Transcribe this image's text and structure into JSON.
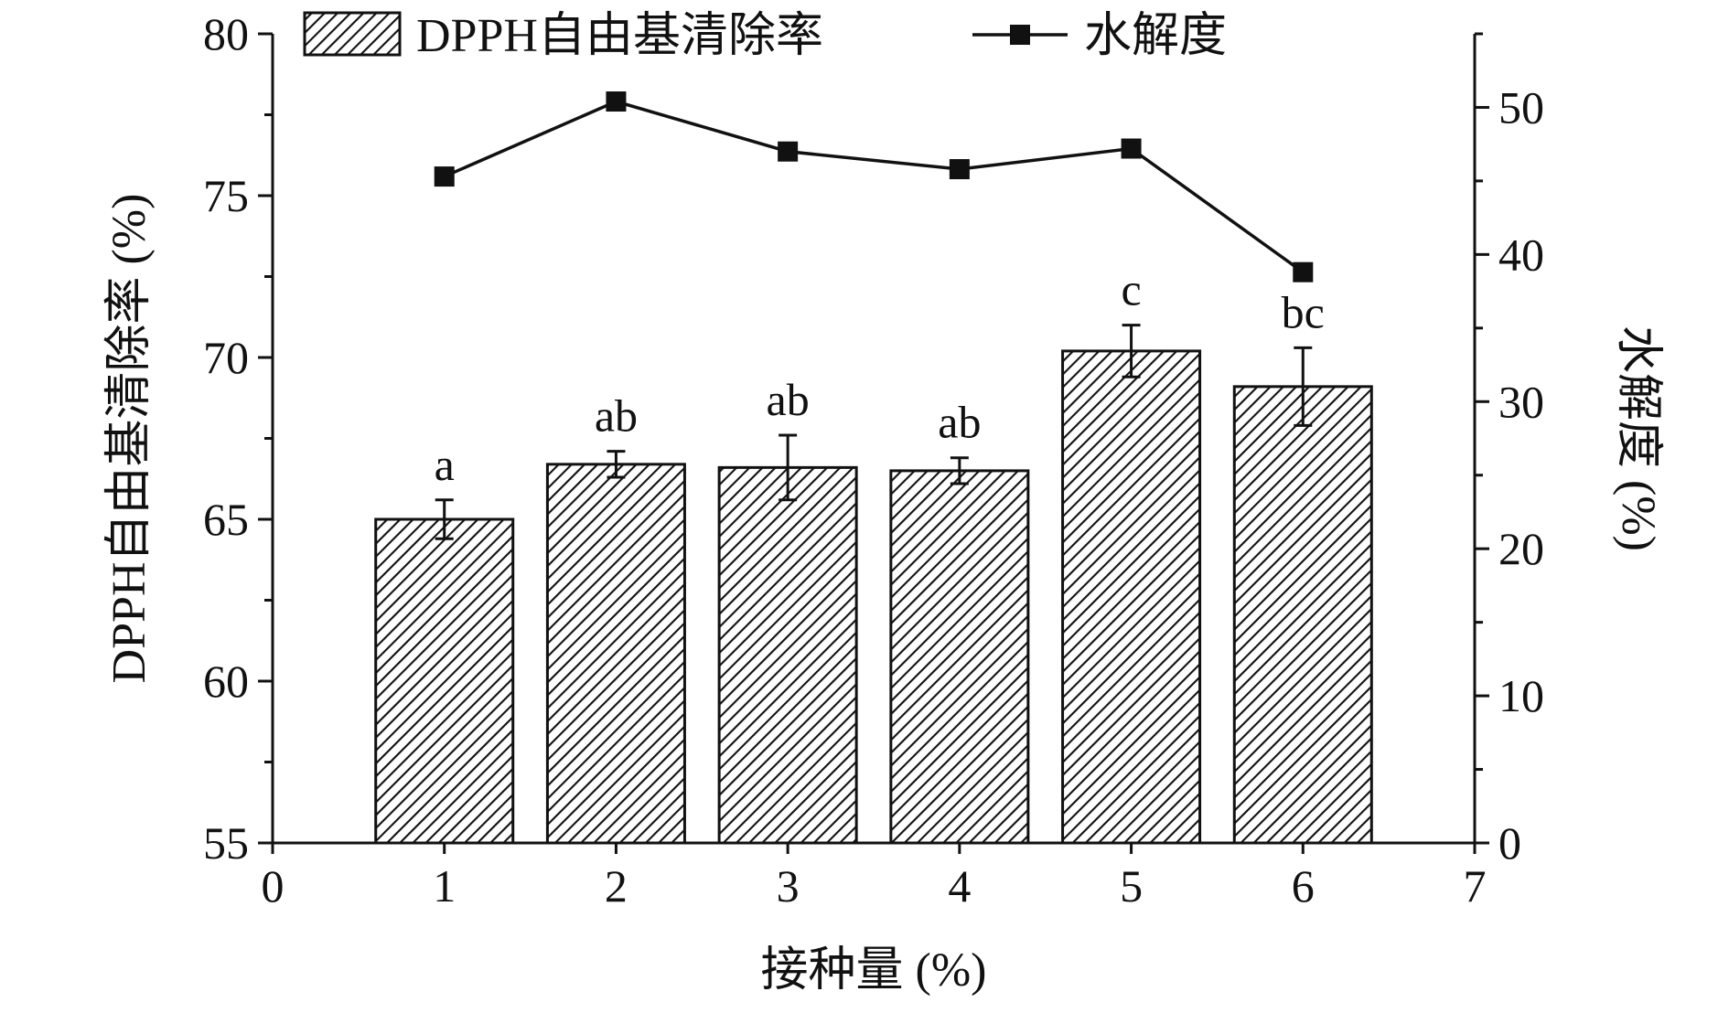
{
  "chart_data": {
    "type": "bar",
    "x": [
      1,
      2,
      3,
      4,
      5,
      6
    ],
    "xlabel": "接种量 (%)",
    "ylabel": "DPPH自由基清除率 (%)",
    "y2label": "水解度 (%)",
    "xlim": [
      0,
      7
    ],
    "ylim": [
      55,
      80
    ],
    "y2lim": [
      0,
      55
    ],
    "xticks": [
      0,
      1,
      2,
      3,
      4,
      5,
      6,
      7
    ],
    "yticks": [
      55,
      60,
      65,
      70,
      75,
      80
    ],
    "y2ticks": [
      0,
      10,
      20,
      30,
      40,
      50
    ],
    "grid": false,
    "legend_position": "top",
    "series": [
      {
        "name": "DPPH自由基清除率",
        "type": "bar",
        "axis": "left",
        "pattern": "diagonal-hatch",
        "values": [
          65.0,
          66.7,
          66.6,
          66.5,
          70.2,
          69.1
        ],
        "errors": [
          0.6,
          0.4,
          1.0,
          0.4,
          0.8,
          1.2
        ],
        "significance_labels": [
          "a",
          "ab",
          "ab",
          "ab",
          "c",
          "bc"
        ]
      },
      {
        "name": "水解度",
        "type": "line",
        "axis": "right",
        "marker": "square",
        "values": [
          45.3,
          50.4,
          47.0,
          45.8,
          47.2,
          38.8
        ]
      }
    ]
  },
  "colors": {
    "ink": "#111111",
    "bar_fill": "#ffffff",
    "hatch": "#111111",
    "background": "#ffffff"
  }
}
